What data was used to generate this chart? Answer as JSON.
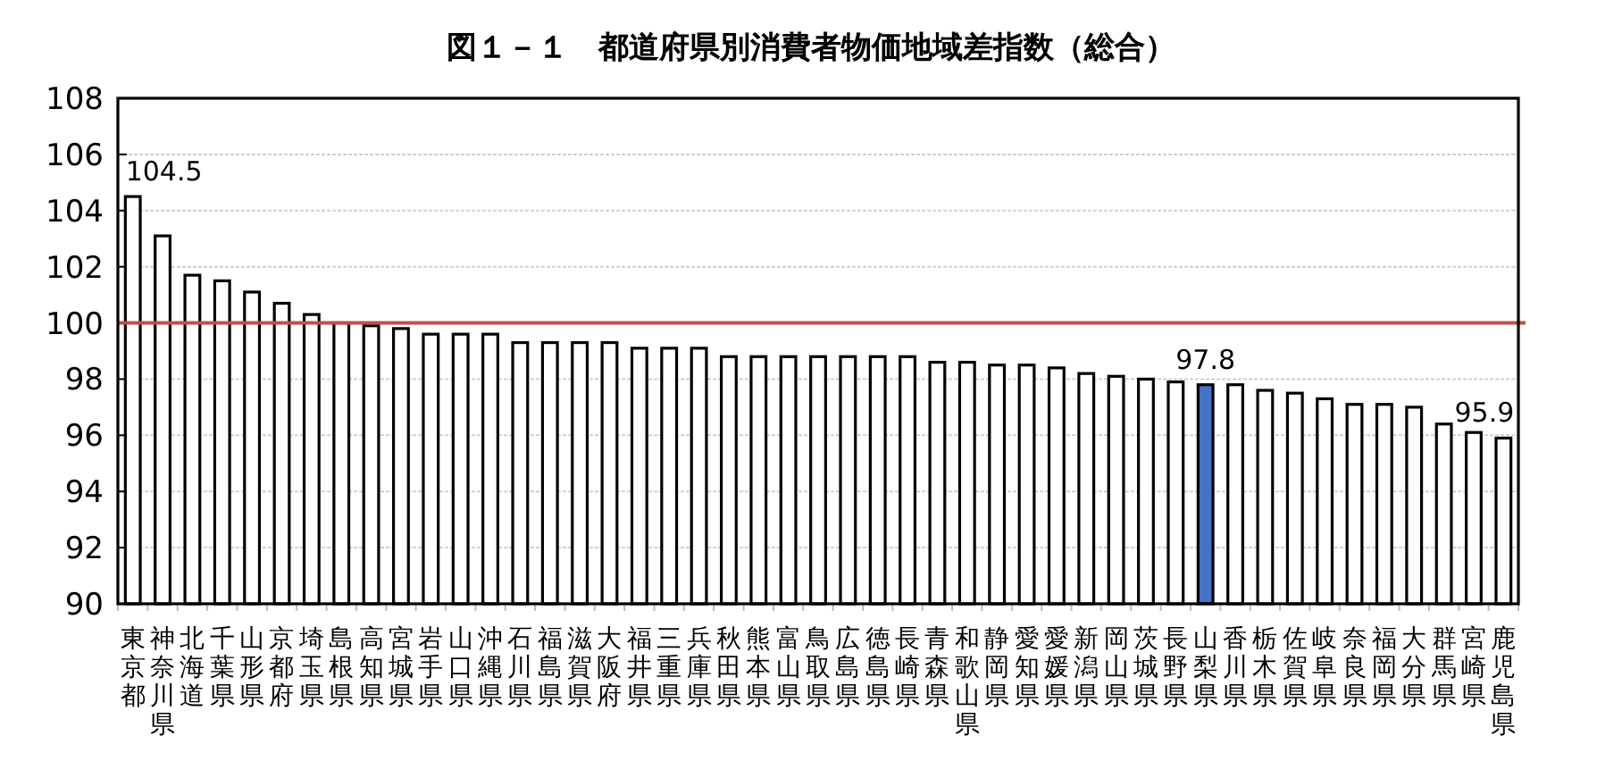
{
  "chart_data": {
    "type": "bar",
    "title": "図１－１　都道府県別消費者物価地域差指数（総合）",
    "categories": [
      "東京都",
      "神奈川県",
      "北海道",
      "千葉県",
      "山形県",
      "京都府",
      "埼玉県",
      "島根県",
      "高知県",
      "宮城県",
      "岩手県",
      "山口県",
      "沖縄県",
      "石川県",
      "福島県",
      "滋賀県",
      "大阪府",
      "福井県",
      "三重県",
      "兵庫県",
      "秋田県",
      "熊本県",
      "富山県",
      "鳥取県",
      "広島県",
      "徳島県",
      "長崎県",
      "青森県",
      "和歌山県",
      "静岡県",
      "愛知県",
      "愛媛県",
      "新潟県",
      "岡山県",
      "茨城県",
      "長野県",
      "山梨県",
      "香川県",
      "栃木県",
      "佐賀県",
      "岐阜県",
      "奈良県",
      "福岡県",
      "大分県",
      "群馬県",
      "宮崎県",
      "鹿児島県"
    ],
    "values": [
      104.5,
      103.1,
      101.7,
      101.5,
      101.1,
      100.7,
      100.3,
      100.0,
      99.9,
      99.8,
      99.6,
      99.6,
      99.6,
      99.3,
      99.3,
      99.3,
      99.3,
      99.1,
      99.1,
      99.1,
      98.8,
      98.8,
      98.8,
      98.8,
      98.8,
      98.8,
      98.8,
      98.6,
      98.6,
      98.5,
      98.5,
      98.4,
      98.2,
      98.1,
      98.0,
      97.9,
      97.8,
      97.8,
      97.6,
      97.5,
      97.3,
      97.1,
      97.1,
      97.0,
      96.4,
      96.1,
      95.9
    ],
    "colors": [
      "#ffffff",
      "#ffffff",
      "#ffffff",
      "#ffffff",
      "#ffffff",
      "#ffffff",
      "#ffffff",
      "#ffffff",
      "#ffffff",
      "#ffffff",
      "#ffffff",
      "#ffffff",
      "#ffffff",
      "#ffffff",
      "#ffffff",
      "#ffffff",
      "#ffffff",
      "#ffffff",
      "#ffffff",
      "#ffffff",
      "#ffffff",
      "#ffffff",
      "#ffffff",
      "#ffffff",
      "#ffffff",
      "#ffffff",
      "#ffffff",
      "#ffffff",
      "#ffffff",
      "#ffffff",
      "#ffffff",
      "#ffffff",
      "#ffffff",
      "#ffffff",
      "#ffffff",
      "#ffffff",
      "#4472c4",
      "#ffffff",
      "#ffffff",
      "#ffffff",
      "#ffffff",
      "#ffffff",
      "#ffffff",
      "#ffffff",
      "#ffffff",
      "#ffffff",
      "#ffffff"
    ],
    "value_labels": [
      "104.5",
      null,
      null,
      null,
      null,
      null,
      null,
      null,
      null,
      null,
      null,
      null,
      null,
      null,
      null,
      null,
      null,
      null,
      null,
      null,
      null,
      null,
      null,
      null,
      null,
      null,
      null,
      null,
      null,
      null,
      null,
      null,
      null,
      null,
      null,
      null,
      "97.8",
      null,
      null,
      null,
      null,
      null,
      null,
      null,
      null,
      null,
      "95.9"
    ],
    "ylim": [
      90,
      108
    ],
    "yticks": [
      90,
      92,
      94,
      96,
      98,
      100,
      102,
      104,
      106,
      108
    ],
    "grid": "y",
    "ref_lines": [
      {
        "axis": "y",
        "value": 100,
        "color": "#c0504d"
      }
    ]
  }
}
